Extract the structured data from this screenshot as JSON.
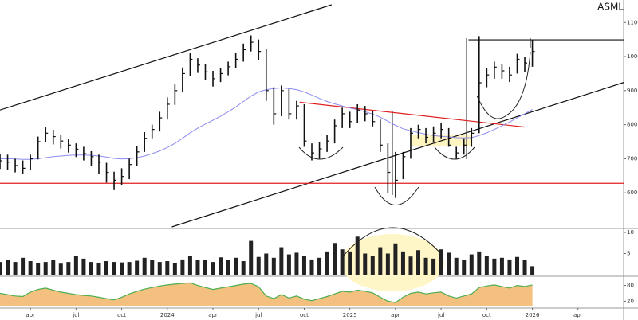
{
  "chart_data": [
    {
      "type": "ohlc",
      "title": "ASML",
      "x": [
        0,
        0.5,
        1,
        1.5,
        2,
        2.5,
        3,
        3.5,
        4,
        4.5,
        5,
        5.5,
        6,
        6.5,
        7,
        7.5,
        8,
        8.5,
        9,
        9.5,
        10,
        10.5,
        11,
        11.5,
        12,
        12.5,
        13,
        13.5,
        14,
        14.5,
        15,
        15.5,
        16,
        16.5,
        17,
        17.5,
        18,
        18.5,
        19,
        19.5,
        20,
        20.5,
        21,
        21.5,
        22,
        22.5,
        23,
        23.5,
        24,
        24.5,
        25,
        25.5,
        26,
        26.5,
        27,
        27.5,
        28,
        28.5,
        29,
        29.5,
        30,
        30.5,
        31,
        31.5,
        32,
        32.5,
        33,
        33.5,
        34,
        34.5,
        35
      ],
      "high": [
        715,
        712,
        700,
        695,
        712,
        765,
        792,
        785,
        770,
        758,
        745,
        735,
        722,
        712,
        688,
        662,
        672,
        700,
        738,
        778,
        800,
        838,
        880,
        918,
        968,
        1010,
        995,
        978,
        958,
        965,
        985,
        1010,
        1038,
        1062,
        1050,
        1022,
        910,
        915,
        905,
        870,
        860,
        745,
        748,
        770,
        815,
        850,
        838,
        860,
        855,
        840,
        815,
        745,
        720,
        720,
        790,
        800,
        790,
        795,
        805,
        790,
        735,
        760,
        790,
        1060,
        965,
        985,
        978,
        970,
        1008,
        1000,
        1050
      ],
      "low": [
        670,
        668,
        660,
        655,
        668,
        698,
        748,
        742,
        730,
        718,
        705,
        695,
        680,
        655,
        630,
        608,
        622,
        640,
        678,
        720,
        760,
        780,
        815,
        858,
        895,
        942,
        952,
        930,
        912,
        925,
        945,
        965,
        985,
        1015,
        990,
        870,
        800,
        825,
        815,
        815,
        735,
        695,
        700,
        720,
        745,
        790,
        790,
        805,
        810,
        795,
        720,
        600,
        585,
        640,
        700,
        760,
        745,
        750,
        760,
        735,
        700,
        712,
        735,
        775,
        910,
        935,
        935,
        925,
        950,
        955,
        970
      ],
      "values": [
        694,
        690,
        680,
        672,
        700,
        750,
        775,
        765,
        752,
        740,
        728,
        715,
        706,
        690,
        660,
        637,
        648,
        683,
        720,
        760,
        786,
        820,
        860,
        900,
        950,
        992,
        975,
        955,
        935,
        950,
        970,
        992,
        1020,
        1042,
        1015,
        900,
        832,
        900,
        832,
        855,
        752,
        717,
        729,
        752,
        797,
        832,
        809,
        843,
        832,
        809,
        740,
        660,
        637,
        706,
        775,
        786,
        763,
        775,
        786,
        740,
        717,
        740,
        775,
        923,
        946,
        969,
        958,
        946,
        992,
        981,
        1015
      ],
      "color": "#111111",
      "ma": {
        "color": "#8c8cf0",
        "values": [
          700,
          700,
          699,
          698,
          698,
          700,
          703,
          706,
          708,
          710,
          711,
          711,
          710,
          708,
          705,
          701,
          699,
          700,
          703,
          708,
          715,
          723,
          733,
          745,
          760,
          776,
          790,
          802,
          813,
          825,
          838,
          852,
          868,
          884,
          896,
          903,
          906,
          908,
          906,
          903,
          896,
          887,
          877,
          868,
          861,
          855,
          849,
          844,
          838,
          831,
          822,
          810,
          798,
          788,
          782,
          777,
          772,
          768,
          766,
          764,
          762,
          761,
          762,
          768,
          776,
          786,
          797,
          808,
          820,
          832,
          845
        ]
      },
      "trendlines": [
        {
          "color": "#111111",
          "x": [
            0,
            21.8
          ],
          "y": [
            843,
            1152
          ]
        },
        {
          "color": "#111111",
          "x": [
            11.3,
            41.3
          ],
          "y": [
            500,
            928
          ]
        },
        {
          "color": "#e02020",
          "x": [
            19.7,
            34.5
          ],
          "y": [
            866,
            793
          ]
        },
        {
          "color": "#e02020",
          "x": [
            0,
            41
          ],
          "y": [
            628,
            628
          ]
        },
        {
          "color": "#111111",
          "x": [
            30.8,
            41
          ],
          "y": [
            1049,
            1049
          ]
        }
      ],
      "xlim": [
        0,
        41
      ],
      "ylim": [
        500,
        1152
      ],
      "yticks": [
        600,
        700,
        800,
        900,
        1000,
        1100
      ]
    },
    {
      "type": "bar",
      "x": [
        0,
        0.5,
        1,
        1.5,
        2,
        2.5,
        3,
        3.5,
        4,
        4.5,
        5,
        5.5,
        6,
        6.5,
        7,
        7.5,
        8,
        8.5,
        9,
        9.5,
        10,
        10.5,
        11,
        11.5,
        12,
        12.5,
        13,
        13.5,
        14,
        14.5,
        15,
        15.5,
        16,
        16.5,
        17,
        17.5,
        18,
        18.5,
        19,
        19.5,
        20,
        20.5,
        21,
        21.5,
        22,
        22.5,
        23,
        23.5,
        24,
        24.5,
        25,
        25.5,
        26,
        26.5,
        27,
        27.5,
        28,
        28.5,
        29,
        29.5,
        30,
        30.5,
        31,
        31.5,
        32,
        32.5,
        33,
        33.5,
        34,
        34.5,
        35
      ],
      "values": [
        3,
        3.5,
        3,
        4,
        3.2,
        2.8,
        3,
        3.5,
        2.6,
        3,
        4.5,
        3.8,
        3,
        2.8,
        3.2,
        3,
        2.9,
        3,
        3.3,
        4,
        3.5,
        3,
        3.2,
        2.8,
        3.6,
        4.5,
        3.5,
        3.4,
        3,
        4.1,
        3.5,
        4,
        3.2,
        8,
        4.2,
        5,
        4,
        6.5,
        4.8,
        5.2,
        4.5,
        3.6,
        4,
        5.5,
        7.5,
        6,
        5.5,
        9,
        5,
        4.5,
        6.5,
        5,
        7.4,
        5.5,
        4.3,
        5.8,
        4,
        3.8,
        6,
        5.2,
        4,
        3.5,
        4.8,
        5.5,
        4.5,
        3.8,
        4,
        3.6,
        4.2,
        3.5,
        2
      ],
      "color": "#222222",
      "xlim": [
        0,
        41
      ],
      "ylim": [
        0,
        10
      ],
      "yticks": [
        5,
        10
      ]
    },
    {
      "type": "area",
      "x": [
        0,
        0.5,
        1,
        1.5,
        2,
        2.5,
        3,
        3.5,
        4,
        4.5,
        5,
        5.5,
        6,
        6.5,
        7,
        7.5,
        8,
        8.5,
        9,
        9.5,
        10,
        10.5,
        11,
        11.5,
        12,
        12.5,
        13,
        13.5,
        14,
        14.5,
        15,
        15.5,
        16,
        16.5,
        17,
        17.5,
        18,
        18.5,
        19,
        19.5,
        20,
        20.5,
        21,
        21.5,
        22,
        22.5,
        23,
        23.5,
        24,
        24.5,
        25,
        25.5,
        26,
        26.5,
        27,
        27.5,
        28,
        28.5,
        29,
        29.5,
        30,
        30.5,
        31,
        31.5,
        32,
        32.5,
        33,
        33.5,
        34,
        34.5,
        35
      ],
      "values": [
        50,
        45,
        40,
        38,
        55,
        65,
        70,
        62,
        55,
        50,
        45,
        42,
        40,
        35,
        30,
        25,
        35,
        48,
        58,
        66,
        72,
        78,
        82,
        85,
        88,
        90,
        80,
        72,
        65,
        70,
        75,
        80,
        85,
        88,
        75,
        40,
        30,
        45,
        32,
        40,
        28,
        22,
        30,
        38,
        48,
        58,
        55,
        62,
        58,
        52,
        35,
        20,
        15,
        35,
        50,
        55,
        48,
        52,
        55,
        40,
        32,
        40,
        48,
        72,
        78,
        82,
        76,
        70,
        80,
        76,
        82
      ],
      "color": "#f0b060",
      "line_color": "#4caf50",
      "xlim": [
        0,
        41
      ],
      "ylim": [
        0,
        100
      ],
      "yticks": [
        20,
        80
      ],
      "xticks": [
        {
          "value": 2,
          "label": "apr"
        },
        {
          "value": 5,
          "label": "jul"
        },
        {
          "value": 8,
          "label": "oct"
        },
        {
          "value": 11,
          "label": "2024"
        },
        {
          "value": 14,
          "label": "apr"
        },
        {
          "value": 17,
          "label": "jul"
        },
        {
          "value": 20,
          "label": "oct"
        },
        {
          "value": 23,
          "label": "2025"
        },
        {
          "value": 26,
          "label": "apr"
        },
        {
          "value": 29,
          "label": "jul"
        },
        {
          "value": 32,
          "label": "oct"
        },
        {
          "value": 35,
          "label": "2026"
        },
        {
          "value": 38,
          "label": "apr"
        }
      ]
    }
  ]
}
